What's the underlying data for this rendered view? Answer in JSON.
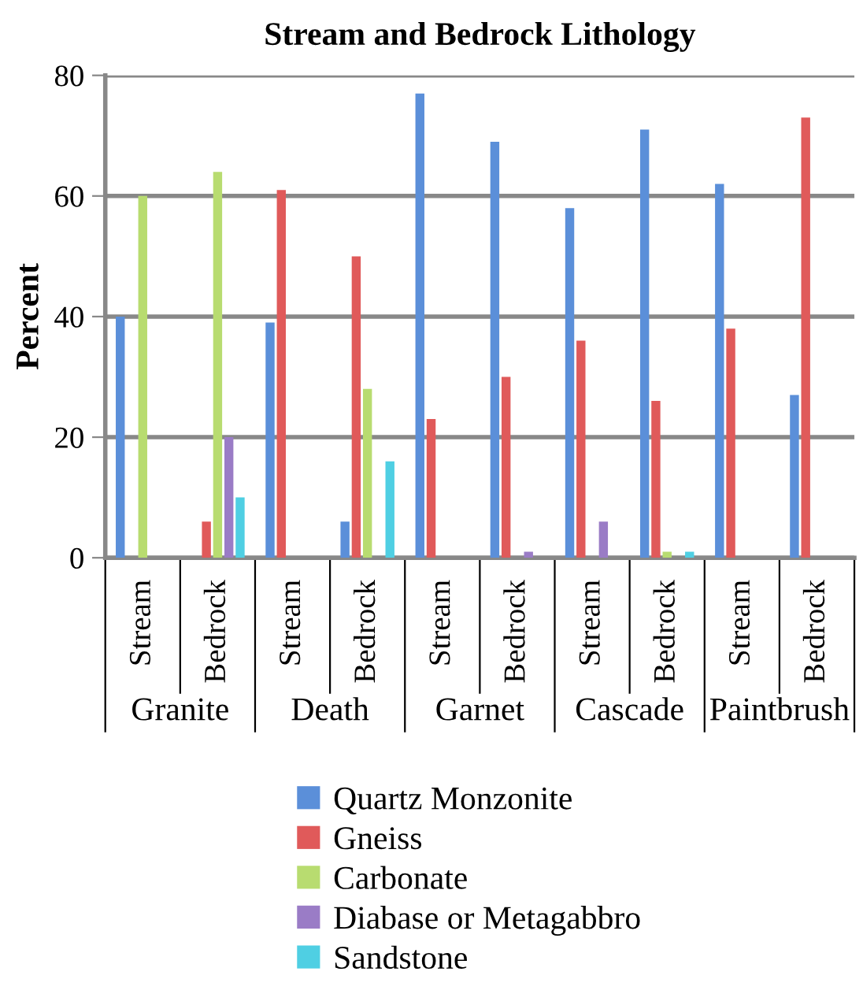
{
  "chart_data": {
    "type": "bar",
    "title": "Stream and Bedrock Lithology",
    "ylabel": "Percent",
    "categories": [
      "Stream",
      "Bedrock",
      "Stream",
      "Bedrock",
      "Stream",
      "Bedrock",
      "Stream",
      "Bedrock",
      "Stream",
      "Bedrock"
    ],
    "annotations": [
      "Granite",
      "Death",
      "Garnet",
      "Cascade",
      "Paintbrush"
    ],
    "series": [
      {
        "name": "Quartz Monzonite",
        "color": "#5b8fd9",
        "values": [
          40,
          0,
          39,
          6,
          77,
          69,
          58,
          71,
          62,
          27
        ]
      },
      {
        "name": "Gneiss",
        "color": "#e05a5a",
        "values": [
          0,
          6,
          61,
          50,
          23,
          30,
          36,
          26,
          38,
          73
        ]
      },
      {
        "name": "Carbonate",
        "color": "#b8dc70",
        "values": [
          60,
          64,
          0,
          28,
          0,
          0,
          0,
          1,
          0,
          0
        ]
      },
      {
        "name": "Diabase or Metagabbro",
        "color": "#9a7cc6",
        "values": [
          0,
          20,
          0,
          0,
          0,
          1,
          6,
          0,
          0,
          0
        ]
      },
      {
        "name": "Sandstone",
        "color": "#4fcfe3",
        "values": [
          0,
          10,
          0,
          16,
          0,
          0,
          0,
          1,
          0,
          0
        ]
      }
    ],
    "ylim": [
      0,
      80
    ],
    "yticks": [
      0,
      20,
      40,
      60,
      80
    ],
    "grid": "y",
    "legend": "bottom"
  }
}
